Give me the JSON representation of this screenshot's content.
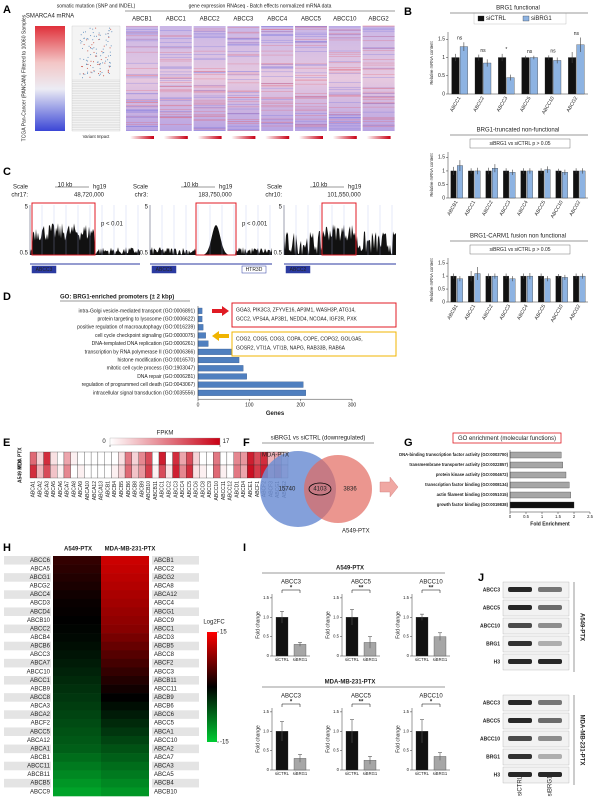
{
  "panels": {
    "A": {
      "label": "A",
      "smarca4": "SMARCA4 mRNA",
      "mutation": "somatic mutation (SNP and INDEL)",
      "expression": "gene expression RNAseq - Batch effects normalized mRNA data",
      "genes": [
        "ABCB1",
        "ABCC1",
        "ABCC2",
        "ABCC3",
        "ABCC4",
        "ABCC5",
        "ABCC10",
        "ABCG2"
      ],
      "cohort": "TCGA Pan-Cancer (PANCAN) Filtered to 10060 Samples",
      "variant": "Variant Impact"
    },
    "B": {
      "label": "B",
      "series": [
        {
          "name": "siCTRL",
          "color": "#111111"
        },
        {
          "name": "siBRG1",
          "color": "#8db3e2"
        }
      ],
      "charts": [
        {
          "title": "BRG1 functional",
          "ylabel": "Relative mRNA content",
          "categories": [
            "ABCC1",
            "ABCC2",
            "ABCC3",
            "ABCC5",
            "ABCC10",
            "ABCG2"
          ],
          "values": [
            [
              1,
              1,
              1,
              1,
              1,
              1
            ],
            [
              1.3,
              0.85,
              0.45,
              1.0,
              0.92,
              1.35
            ]
          ],
          "errors": [
            [
              0.1,
              0.08,
              0.1,
              0.05,
              0.06,
              0.15
            ],
            [
              0.12,
              0.1,
              0.08,
              0.05,
              0.08,
              0.2
            ]
          ],
          "sig": [
            "ns",
            "ns",
            "*",
            "ns",
            "ns",
            "ns"
          ],
          "ylim": [
            0,
            1.7
          ],
          "yticks": [
            0,
            0.5,
            1,
            1.5
          ]
        },
        {
          "title": "BRG1-truncated non-functional",
          "note": "siBRG1 vs siCTRL p > 0.05",
          "ylabel": "Relative mRNA content",
          "categories": [
            "ABCB1",
            "ABCC1",
            "ABCC2",
            "ABCC3",
            "ABCC4",
            "ABCC5",
            "ABCC10",
            "ABCG2"
          ],
          "values": [
            [
              1,
              1,
              1,
              1,
              1,
              1,
              1,
              1
            ],
            [
              1.2,
              1.0,
              1.1,
              0.95,
              1.0,
              1.05,
              0.95,
              1.0
            ]
          ],
          "errors": [
            [
              0.15,
              0.1,
              0.12,
              0.1,
              0.1,
              0.1,
              0.08,
              0.1
            ],
            [
              0.2,
              0.12,
              0.15,
              0.1,
              0.1,
              0.12,
              0.1,
              0.1
            ]
          ],
          "ylim": [
            0,
            1.7
          ],
          "yticks": [
            0,
            0.5,
            1,
            1.5
          ]
        },
        {
          "title": "BRG1-CARM1 fusion non functional",
          "note": "siBRG1 vs siCTRL p > 0.05",
          "ylabel": "Relative mRNA content",
          "categories": [
            "ABCB1",
            "ABCC1",
            "ABCC2",
            "ABCC3",
            "ABCC4",
            "ABCC5",
            "ABCC10",
            "ABCG2"
          ],
          "values": [
            [
              1,
              1,
              1,
              1,
              1,
              1,
              1,
              1
            ],
            [
              0.9,
              1.1,
              1.0,
              0.9,
              1.0,
              0.9,
              0.95,
              1.0
            ]
          ],
          "errors": [
            [
              0.1,
              0.2,
              0.1,
              0.1,
              0.1,
              0.1,
              0.08,
              0.1
            ],
            [
              0.1,
              0.25,
              0.1,
              0.1,
              0.12,
              0.1,
              0.1,
              0.1
            ]
          ],
          "ylim": [
            0,
            1.7
          ],
          "yticks": [
            0,
            0.5,
            1,
            1.5
          ]
        }
      ]
    },
    "C": {
      "label": "C",
      "tracks": [
        {
          "scale": "Scale",
          "chrom": "chr17:",
          "kb": "10 kb",
          "build": "hg19",
          "pos": "48,720,000",
          "p": "p < 0.01",
          "genes": [
            "ABCC3"
          ],
          "scale_top": "5",
          "scale_bottom": "0.5"
        },
        {
          "scale": "Scale",
          "chrom": "chr3:",
          "kb": "10 kb",
          "build": "hg19",
          "pos": "183,750,000",
          "p": "p < 0.001",
          "genes": [
            "ABCC5",
            "HTR3D"
          ],
          "scale_top": "5",
          "scale_bottom": "0.5"
        },
        {
          "scale": "Scale",
          "chrom": "chr10:",
          "kb": "10 kb",
          "build": "hg19",
          "pos": "101,550,000",
          "genes": [
            "ABCC2"
          ],
          "scale_top": "5",
          "scale_bottom": "0.5"
        }
      ]
    },
    "D": {
      "label": "D",
      "title": "GO: BRG1-enriched promoters (± 2 kbp)",
      "categories": [
        "intra-Golgi vesicle-mediated transport (GO:0006891)",
        "protein targeting to lysosome (GO:0006622)",
        "positive regulation of macroautophagy (GO:0016239)",
        "cell cycle checkpoint signaling (GO:0000075)",
        "DNA-templated DNA replication (GO:0006261)",
        "transcription by RNA polymerase II (GO:0006366)",
        "histone modification (GO:0016570)",
        "mitotic cell cycle process (GO:1903047)",
        "DNA repair (GO:0006281)",
        "regulation of programmed cell death (GO:0043067)",
        "intracellular signal transduction (GO:0035556)"
      ],
      "values": [
        8,
        8,
        10,
        15,
        20,
        75,
        80,
        88,
        95,
        205,
        210
      ],
      "color": "#4f7fbf",
      "xlim": [
        0,
        300
      ],
      "xticks": [
        0,
        100,
        200,
        300
      ],
      "xlabel": "Genes",
      "genes_red": [
        "GGA3,  PIK3C3,  ZFYVE16,  AP3M1,  WASH3P,  ATG14,",
        "GCC2,  VPS4A,  AP3B1,  NEDD4,  NCOA4,  IGF2R,  PXK"
      ],
      "genes_orange": [
        "COG2,  COG5,  COG3,  COPA,  COPE,  COPG2,  GOLGA5,",
        "GOSR2,  VTI1A,  VTI1B,  NAPG,  RAB33B,  RAB6A"
      ]
    },
    "E": {
      "label": "E",
      "title": "FPKM",
      "scale": [
        0,
        17
      ],
      "rows": [
        "MDA PTX",
        "A549 PTX"
      ],
      "columns": [
        "ABCA1",
        "ABCA2",
        "ABCA3",
        "ABCA5",
        "ABCA6",
        "ABCA7",
        "ABCA8",
        "ABCA9",
        "ABCA10",
        "ABCA12",
        "ABCA13",
        "ABCB1",
        "ABCB4",
        "ABCB5",
        "ABCB6",
        "ABCB8",
        "ABCB9",
        "ABCB10",
        "ABCB11",
        "ABCC1",
        "ABCC2",
        "ABCC3",
        "ABCC4",
        "ABCC5",
        "ABCC6",
        "ABCC8",
        "ABCC9",
        "ABCC10",
        "ABCC11",
        "ABCC12",
        "ABCD1",
        "ABCD4",
        "ABCE1",
        "ABCF1",
        "ABCF2",
        "ABCF3",
        "ABCG1",
        "ABCG2"
      ],
      "values": [
        [
          10,
          3,
          14,
          2,
          0,
          6,
          1,
          0,
          0,
          0,
          0,
          0,
          0,
          2,
          9,
          3,
          8,
          12,
          0,
          15,
          0,
          14,
          6,
          12,
          3,
          0,
          0,
          9,
          0,
          0,
          8,
          7,
          15,
          12,
          14,
          5,
          6,
          2
        ],
        [
          14,
          5,
          12,
          4,
          1,
          8,
          0,
          1,
          0,
          0,
          0,
          0,
          1,
          3,
          10,
          4,
          7,
          13,
          1,
          12,
          2,
          15,
          8,
          14,
          2,
          1,
          0,
          10,
          1,
          0,
          9,
          6,
          16,
          13,
          15,
          6,
          8,
          3
        ]
      ]
    },
    "F": {
      "label": "F",
      "title": "siBRG1 vs siCTRL (downregulated)",
      "sets": [
        "MDA-PTX",
        "A549-PTX"
      ],
      "counts": [
        15740,
        4103,
        3836
      ]
    },
    "G": {
      "label": "G",
      "title": "GO enrichment (molecular functions)",
      "categories": [
        "DNA-binding transcription factor activity (GO:0003700)",
        "transmembrane transporter activity (GO:0022857)",
        "protein kinase activity (GO:0004672)",
        "transcription factor binding (GO:0008134)",
        "actin filament binding (GO:0051015)",
        "growth factor binding (GO:0019838)"
      ],
      "values": [
        1.6,
        1.65,
        1.75,
        1.85,
        1.9,
        2.0
      ],
      "color": "#a6a6a6",
      "xlim": [
        0,
        2.5
      ],
      "xticks": [
        0,
        0.5,
        1,
        1.5,
        2,
        2.5
      ],
      "xlabel": "Fold Enrichment"
    },
    "H": {
      "label": "H",
      "columns": [
        "A549-PTX",
        "MDA-MB-231-PTX"
      ],
      "left": [
        "ABCC6",
        "ABCA5",
        "ABCG1",
        "ABCG2",
        "ABCC4",
        "ABCD3",
        "ABCD4",
        "ABCB10",
        "ABCC2",
        "ABCB4",
        "ABCB6",
        "ABCC3",
        "ABCA7",
        "ABCC10",
        "ABCC1",
        "ABCB9",
        "ABCC8",
        "ABCA3",
        "ABCA2",
        "ABCF2",
        "ABCC5",
        "ABCA12",
        "ABCA1",
        "ABCB1",
        "ABCC11",
        "ABCB11",
        "ABCB5",
        "ABCC9"
      ],
      "right": [
        "ABCB1",
        "ABCC2",
        "ABCG2",
        "ABCA8",
        "ABCA12",
        "ABCC4",
        "ABCG1",
        "ABCC9",
        "ABCC1",
        "ABCD3",
        "ABCB5",
        "ABCC8",
        "ABCF2",
        "ABCC3",
        "ABCB11",
        "ABCC11",
        "ABCB9",
        "ABCB6",
        "ABCC6",
        "ABCC5",
        "ABCA1",
        "ABCC10",
        "ABCA2",
        "ABCA7",
        "ABCA3",
        "ABCA5",
        "ABCB4",
        "ABCB10"
      ],
      "a549": [
        3,
        2.5,
        2,
        1.5,
        1,
        0.5,
        0.3,
        0,
        -0.3,
        -0.6,
        -1,
        -1.5,
        -2,
        -2.5,
        -3,
        -3.5,
        -4,
        -4.5,
        -5,
        -5.5,
        -6,
        -6.5,
        -7,
        -8,
        -9,
        -10,
        -11,
        -12
      ],
      "mda": [
        12,
        11.5,
        11,
        10.5,
        10,
        9.5,
        9,
        8.5,
        8,
        7,
        6,
        5,
        4,
        3,
        2,
        1,
        0,
        -1,
        -2,
        -3,
        -4,
        -5,
        -6,
        -7,
        -8,
        -9,
        -10,
        -11
      ],
      "legend": "Log2FC",
      "clim": [
        -15,
        15
      ]
    },
    "I": {
      "label": "I",
      "categories": [
        "siCTRL",
        "siBRG1"
      ],
      "ylabel": "Fold change",
      "colors": [
        "#111111",
        "#a6a6a6"
      ],
      "ylim": [
        0,
        1.6
      ],
      "yticks": [
        0,
        0.5,
        {
          "value": 1,
          "label": "1.0"
        },
        1.5
      ],
      "groups": [
        {
          "name": "A549-PTX",
          "charts": [
            {
              "name": "ABCC3",
              "values": [
                1.0,
                0.3
              ],
              "errors": [
                0.15,
                0.05
              ],
              "sig": "*"
            },
            {
              "name": "ABCC5",
              "values": [
                1.0,
                0.35
              ],
              "errors": [
                0.2,
                0.15
              ],
              "sig": "**"
            },
            {
              "name": "ABCC10",
              "values": [
                1.0,
                0.5
              ],
              "errors": [
                0.08,
                0.1
              ],
              "sig": "**"
            }
          ]
        },
        {
          "name": "MDA-MB-231-PTX",
          "charts": [
            {
              "name": "ABCC3",
              "values": [
                1.0,
                0.3
              ],
              "errors": [
                0.25,
                0.1
              ],
              "sig": "*"
            },
            {
              "name": "ABCC5",
              "values": [
                1.0,
                0.25
              ],
              "errors": [
                0.3,
                0.1
              ],
              "sig": "**"
            },
            {
              "name": "ABCC10",
              "values": [
                1.0,
                0.35
              ],
              "errors": [
                0.3,
                0.1
              ],
              "sig": "*"
            }
          ]
        }
      ]
    },
    "J": {
      "label": "J",
      "lanes": [
        "siCTRL",
        "siBRG1"
      ],
      "groups": [
        {
          "name": "A549-PTX",
          "bands": [
            "ABCC3",
            "ABCC5",
            "ABCC10",
            "BRG1",
            "H3"
          ]
        },
        {
          "name": "MDA-MB-231-PTX",
          "bands": [
            "ABCC3",
            "ABCC5",
            "ABCC10",
            "BRG1",
            "H3"
          ]
        }
      ]
    }
  }
}
